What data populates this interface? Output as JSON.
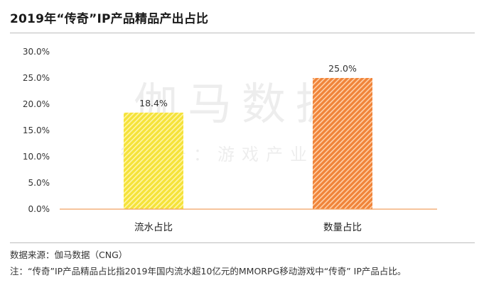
{
  "header": {
    "title": "2019年“传奇”IP产品精品产出占比"
  },
  "footer": {
    "source": "数据来源：伽马数据（CNG）",
    "note": "注：“传奇”IP产品精品占比指2019年国内流水超10亿元的MMORPG移动游戏中“传奇” IP产品占比。"
  },
  "watermark": {
    "line1": "伽马数据",
    "line2": "微信号：游戏产业报告"
  },
  "colors": {
    "bar1": "#f5e23a",
    "bar1_stripe": "#fff6a8",
    "bar2": "#f0843a",
    "bar2_stripe": "#ffd0a8",
    "baseline": "#f0a060"
  },
  "chart_data": {
    "type": "bar",
    "categories": [
      "流水占比",
      "数量占比"
    ],
    "values": [
      18.4,
      25.0
    ],
    "value_labels": [
      "18.4%",
      "25.0%"
    ],
    "ylim": [
      0,
      30
    ],
    "yticks": [
      "0.0%",
      "5.0%",
      "10.0%",
      "15.0%",
      "20.0%",
      "25.0%",
      "30.0%"
    ],
    "grid": false
  }
}
